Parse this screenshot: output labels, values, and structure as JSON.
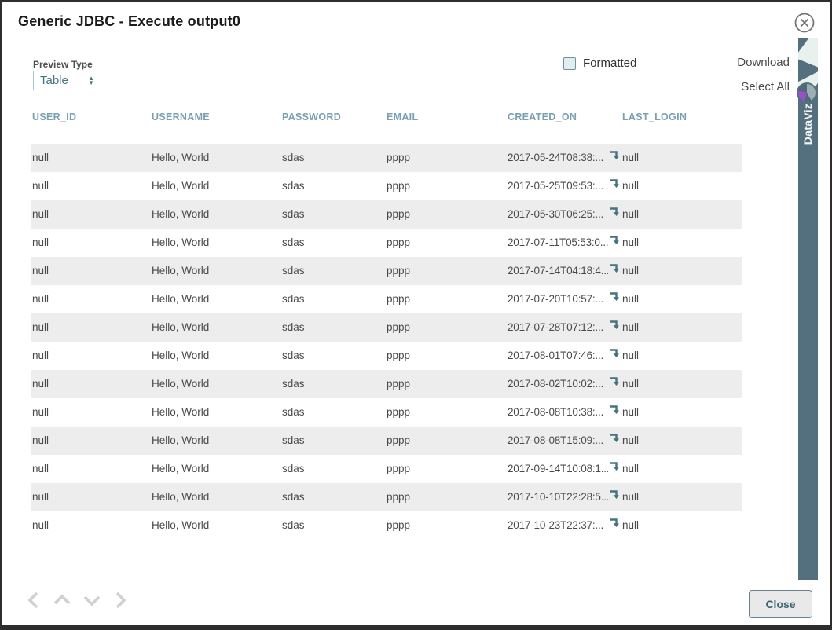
{
  "dialog": {
    "title": "Generic JDBC - Execute output0"
  },
  "toolbar": {
    "preview_type_label": "Preview Type",
    "preview_type_value": "Table",
    "formatted_label": "Formatted",
    "formatted_checked": false,
    "download_label": "Download",
    "select_all_label": "Select All"
  },
  "table": {
    "columns": [
      "USER_ID",
      "USERNAME",
      "PASSWORD",
      "EMAIL",
      "CREATED_ON",
      "LAST_LOGIN"
    ],
    "rows": [
      {
        "user_id": "null",
        "username": "Hello, World",
        "password": "sdas",
        "email": "pppp",
        "created_on": "2017-05-24T08:38:...",
        "last_login": "null"
      },
      {
        "user_id": "null",
        "username": "Hello, World",
        "password": "sdas",
        "email": "pppp",
        "created_on": "2017-05-25T09:53:...",
        "last_login": "null"
      },
      {
        "user_id": "null",
        "username": "Hello, World",
        "password": "sdas",
        "email": "pppp",
        "created_on": "2017-05-30T06:25:...",
        "last_login": "null"
      },
      {
        "user_id": "null",
        "username": "Hello, World",
        "password": "sdas",
        "email": "pppp",
        "created_on": "2017-07-11T05:53:0...",
        "last_login": "null"
      },
      {
        "user_id": "null",
        "username": "Hello, World",
        "password": "sdas",
        "email": "pppp",
        "created_on": "2017-07-14T04:18:4...",
        "last_login": "null"
      },
      {
        "user_id": "null",
        "username": "Hello, World",
        "password": "sdas",
        "email": "pppp",
        "created_on": "2017-07-20T10:57:...",
        "last_login": "null"
      },
      {
        "user_id": "null",
        "username": "Hello, World",
        "password": "sdas",
        "email": "pppp",
        "created_on": "2017-07-28T07:12:...",
        "last_login": "null"
      },
      {
        "user_id": "null",
        "username": "Hello, World",
        "password": "sdas",
        "email": "pppp",
        "created_on": "2017-08-01T07:46:...",
        "last_login": "null"
      },
      {
        "user_id": "null",
        "username": "Hello, World",
        "password": "sdas",
        "email": "pppp",
        "created_on": "2017-08-02T10:02:...",
        "last_login": "null"
      },
      {
        "user_id": "null",
        "username": "Hello, World",
        "password": "sdas",
        "email": "pppp",
        "created_on": "2017-08-08T10:38:...",
        "last_login": "null"
      },
      {
        "user_id": "null",
        "username": "Hello, World",
        "password": "sdas",
        "email": "pppp",
        "created_on": "2017-08-08T15:09:...",
        "last_login": "null"
      },
      {
        "user_id": "null",
        "username": "Hello, World",
        "password": "sdas",
        "email": "pppp",
        "created_on": "2017-09-14T10:08:1...",
        "last_login": "null"
      },
      {
        "user_id": "null",
        "username": "Hello, World",
        "password": "sdas",
        "email": "pppp",
        "created_on": "2017-10-10T22:28:5...",
        "last_login": "null"
      },
      {
        "user_id": "null",
        "username": "Hello, World",
        "password": "sdas",
        "email": "pppp",
        "created_on": "2017-10-23T22:37:...",
        "last_login": "null"
      }
    ]
  },
  "side_tab": {
    "label": "DataViz"
  },
  "footer": {
    "close_label": "Close"
  },
  "colors": {
    "accent_teal": "#47727f",
    "header_text": "#7aa0b2",
    "strip_bg": "#54707e",
    "row_alt_bg": "#ededed",
    "pie_purple": "#9b4dca",
    "pie_gray": "#9fadb5"
  }
}
